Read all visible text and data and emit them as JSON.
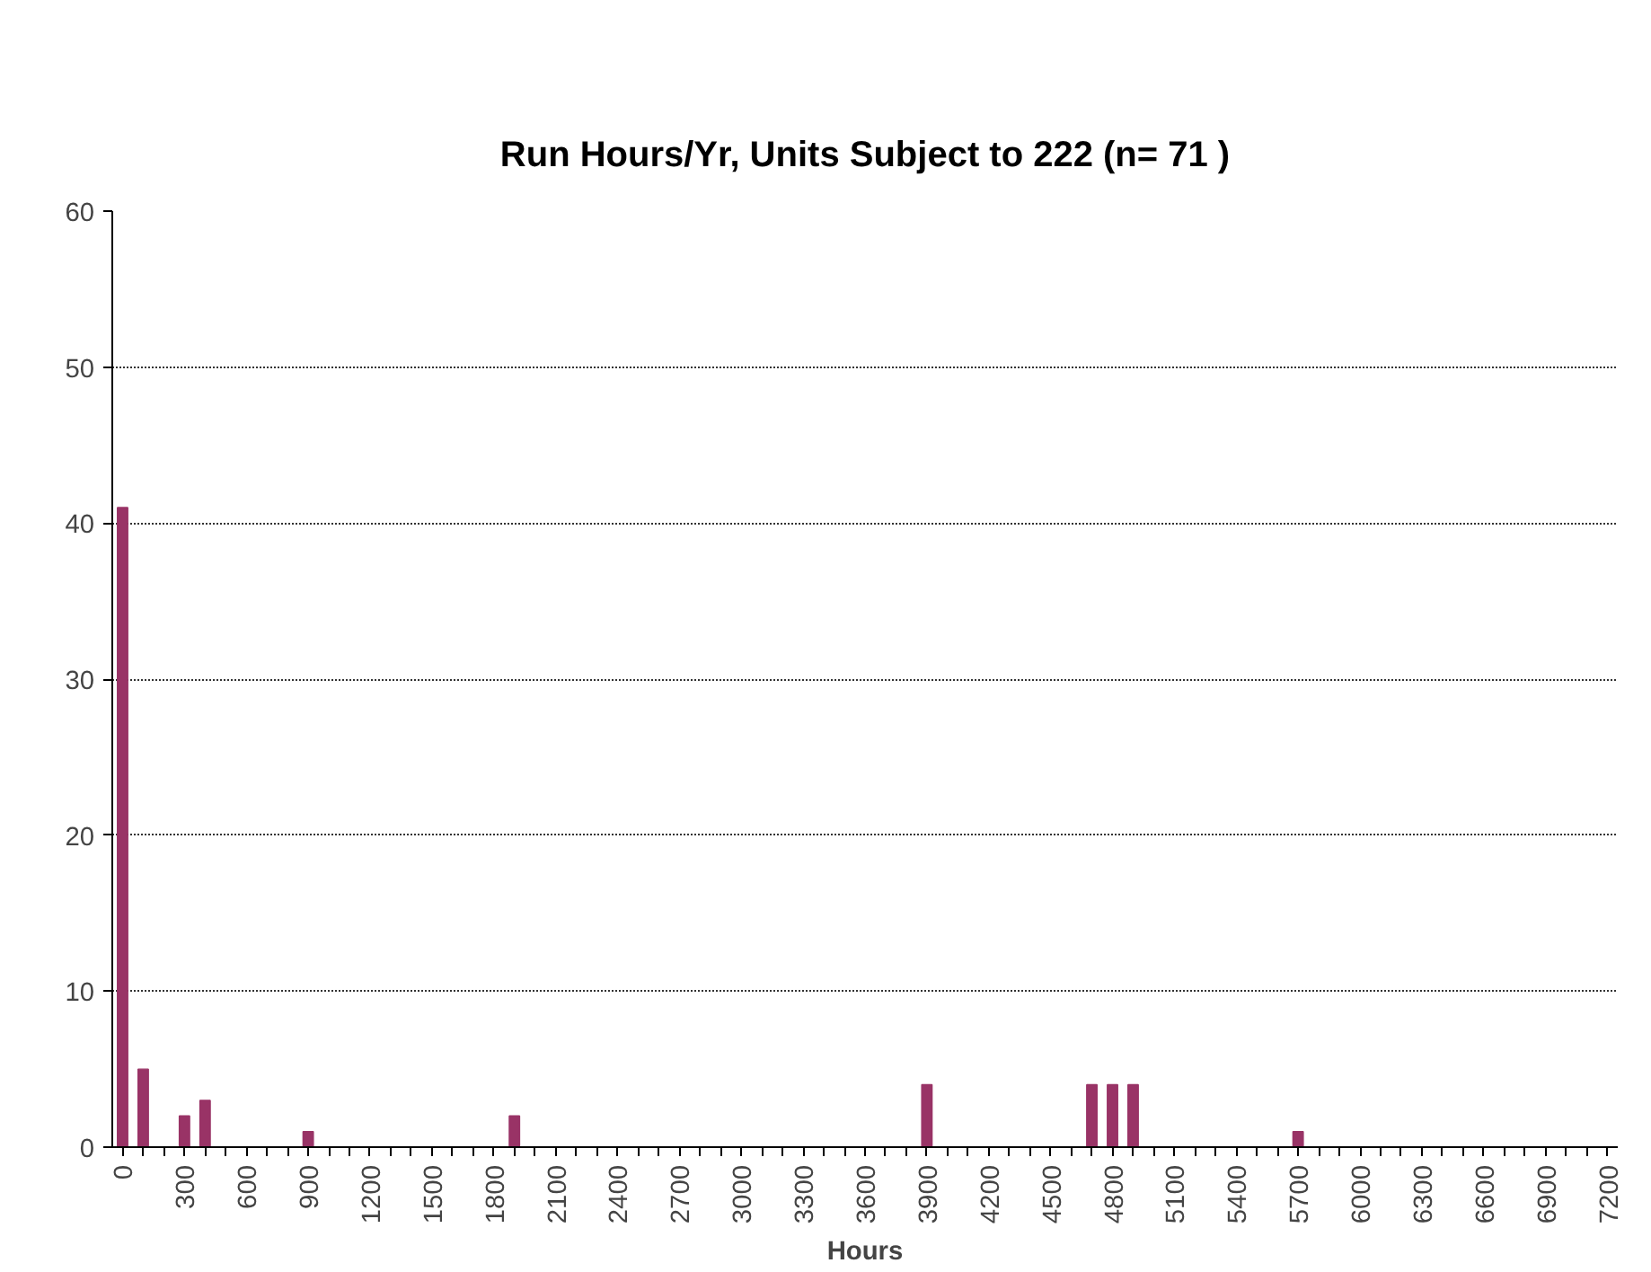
{
  "chart_data": {
    "type": "bar",
    "title": "Run Hours/Yr, Units Subject to 222 (n= 71 )",
    "xlabel": "Hours",
    "categories": [
      "0",
      null,
      null,
      "300",
      null,
      null,
      "600",
      null,
      null,
      "900",
      null,
      null,
      "1200",
      null,
      null,
      "1500",
      null,
      null,
      "1800",
      null,
      null,
      "2100",
      null,
      null,
      "2400",
      null,
      null,
      "2700",
      null,
      null,
      "3000",
      null,
      null,
      "3300",
      null,
      null,
      "3600",
      null,
      null,
      "3900",
      null,
      null,
      "4200",
      null,
      null,
      "4500",
      null,
      null,
      "4800",
      null,
      null,
      "5100",
      null,
      null,
      "5400",
      null,
      null,
      "5700",
      null,
      null,
      "6000",
      null,
      null,
      "6300",
      null,
      null,
      "6600",
      null,
      null,
      "6900",
      null,
      null,
      "7200"
    ],
    "values": [
      41,
      5,
      0,
      2,
      3,
      0,
      0,
      0,
      0,
      1,
      0,
      0,
      0,
      0,
      0,
      0,
      0,
      0,
      0,
      2,
      0,
      0,
      0,
      0,
      0,
      0,
      0,
      0,
      0,
      0,
      0,
      0,
      0,
      0,
      0,
      0,
      0,
      0,
      0,
      4,
      0,
      0,
      0,
      0,
      0,
      0,
      0,
      4,
      4,
      4,
      0,
      0,
      0,
      0,
      0,
      0,
      0,
      1,
      0,
      0,
      0,
      0,
      0,
      0,
      0,
      0,
      0,
      0,
      0,
      0,
      0,
      0,
      0
    ],
    "color": "#993366",
    "ylim": [
      0,
      60
    ],
    "yticks": [
      0,
      10,
      20,
      30,
      40,
      50,
      60
    ],
    "grid": "y"
  }
}
